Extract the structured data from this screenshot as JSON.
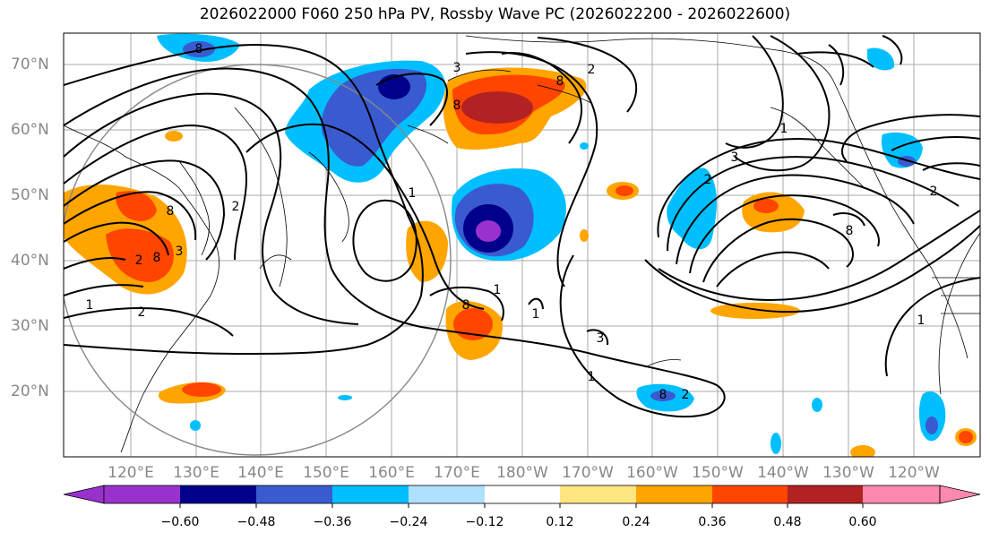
{
  "title": "2026022000 F060 250 hPa PV, Rossby Wave PC (2026022200 - 2026022600)",
  "lat_labels": [
    "70°N",
    "60°N",
    "50°N",
    "40°N",
    "30°N",
    "20°N"
  ],
  "lon_labels": [
    "120°E",
    "130°E",
    "140°E",
    "150°E",
    "160°E",
    "170°E",
    "180°W",
    "170°W",
    "160°W",
    "150°W",
    "140°W",
    "130°W",
    "120°W"
  ],
  "colorbar": {
    "ticks": [
      "−0.60",
      "−0.48",
      "−0.36",
      "−0.24",
      "−0.12",
      "0.12",
      "0.24",
      "0.36",
      "0.48",
      "0.60"
    ],
    "colors": [
      "#9932cc",
      "#00008b",
      "#3a5bd0",
      "#00bfff",
      "#b0e0ff",
      "#ffffff",
      "#ffe680",
      "#ffa500",
      "#ff4500",
      "#b22222",
      "#ff88b0"
    ]
  },
  "contour_labels": [
    "8",
    "3",
    "2",
    "8",
    "8",
    "8",
    "2",
    "8",
    "3",
    "2",
    "1",
    "1",
    "2",
    "8",
    "3",
    "1",
    "8",
    "1",
    "1",
    "8",
    "2",
    "1",
    "3",
    "1",
    "2",
    "2"
  ],
  "range_circle": "reference circle",
  "line_color": "#000000"
}
